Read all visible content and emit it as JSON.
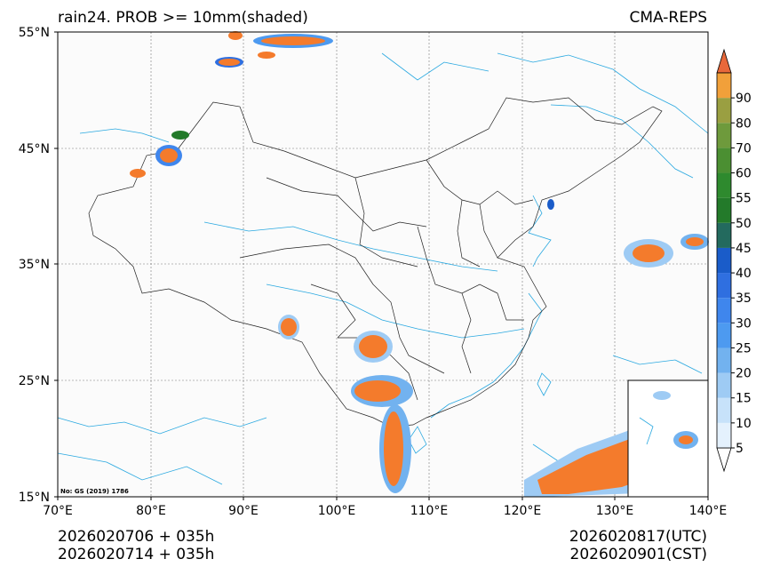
{
  "title_left": "rain24. PROB >= 10mm(shaded)",
  "title_right": "CMA-REPS",
  "map_note": "No: GS (2019) 1786",
  "lat_ticks": [
    "55°N",
    "45°N",
    "35°N",
    "25°N",
    "15°N"
  ],
  "lon_ticks": [
    "70°E",
    "80°E",
    "90°E",
    "100°E",
    "110°E",
    "120°E",
    "130°E",
    "140°E"
  ],
  "colorbar": {
    "levels": [
      5,
      10,
      15,
      20,
      25,
      30,
      35,
      40,
      45,
      50,
      55,
      60,
      70,
      80,
      90
    ],
    "labels": [
      "5",
      "10",
      "15",
      "20",
      "25",
      "30",
      "35",
      "40",
      "45",
      "50",
      "55",
      "60",
      "70",
      "80",
      "90"
    ],
    "colors": [
      "#e4f1fd",
      "#c7e2fa",
      "#9ecbf4",
      "#72b2ef",
      "#4d9af0",
      "#3f86ed",
      "#2f6fe0",
      "#1a5cc9",
      "#236a5e",
      "#237a2a",
      "#2e8a2e",
      "#4b8f32",
      "#6e9a3c",
      "#9a9f41",
      "#f1a03a",
      "#f47b2c",
      "#e8683a"
    ]
  },
  "footer": {
    "init_utc": "2026020706  +  035h",
    "init_cst": "2026020714  +  035h",
    "valid_utc": "2026020817(UTC)",
    "valid_cst": "2026020901(CST)"
  }
}
